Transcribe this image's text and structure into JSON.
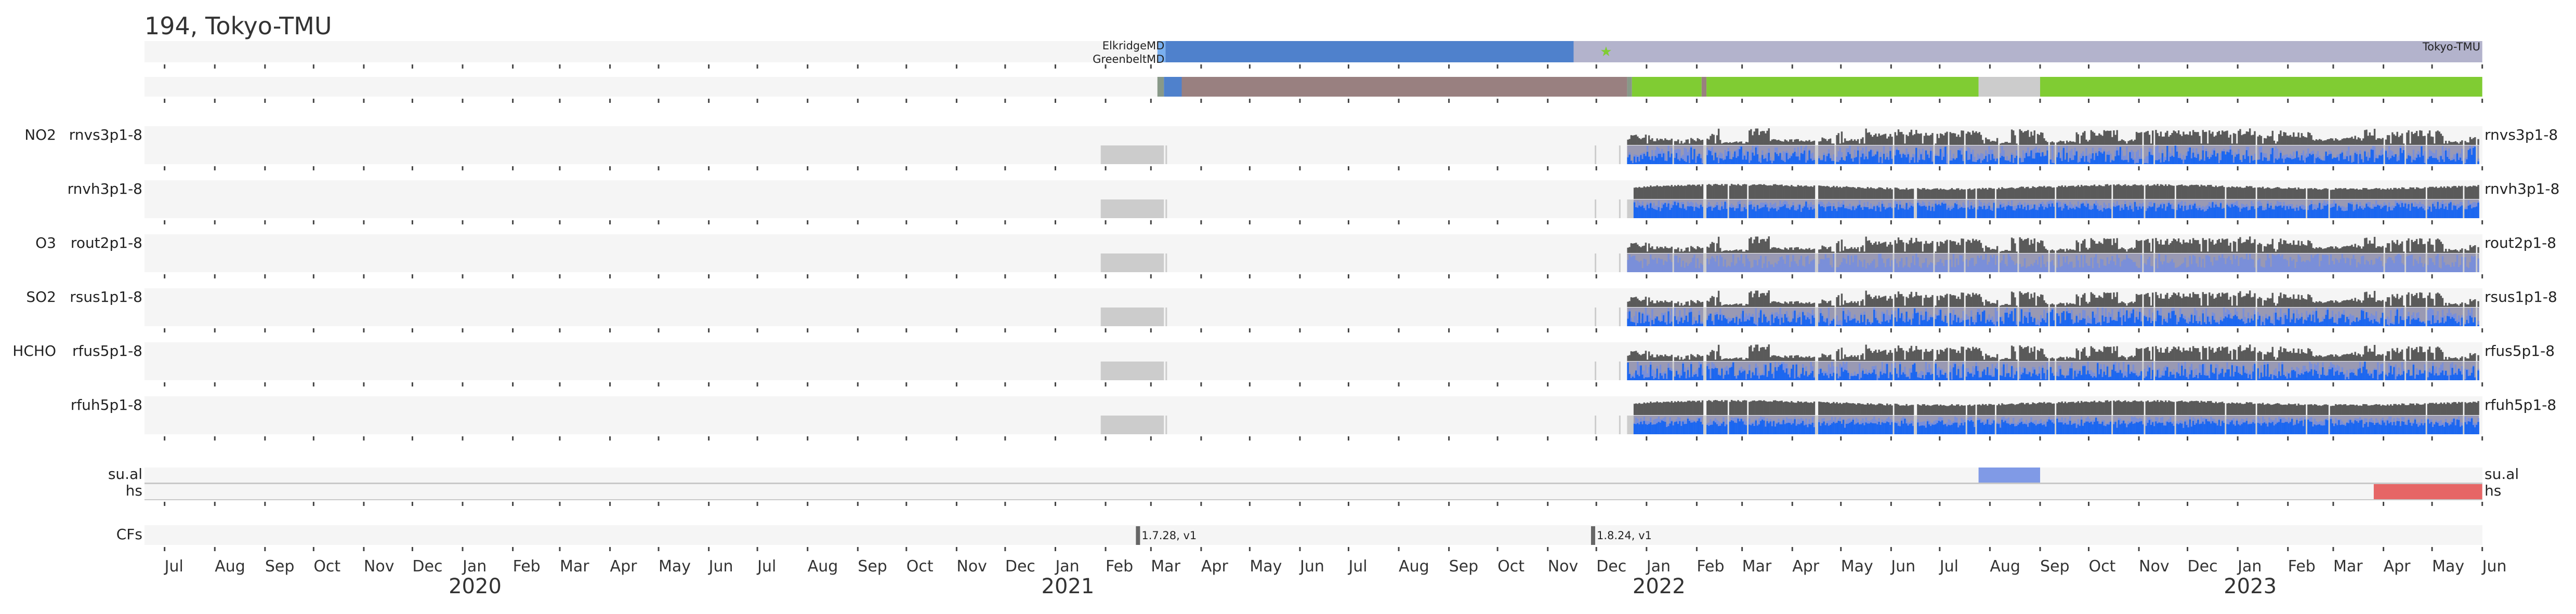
{
  "title": "194, Tokyo-TMU",
  "colors": {
    "panel_bg": "#f5f5f5",
    "site_blue": "#4f81cc",
    "site_lightblue": "#7ab0f0",
    "site_lavender": "#b3b3cc",
    "star_green": "#80cc33",
    "status_greygreen": "#889988",
    "status_brown": "#998080",
    "status_green": "#80cc33",
    "status_grey": "#cccccc",
    "data_dark": "#5a5a5a",
    "data_lavender": "#9999b3",
    "data_lightblue": "#7a8fd9",
    "data_blue": "#1a66f0",
    "sual_blue": "#809ae6",
    "hs_red": "#e66666",
    "cf_mark": "#666666"
  },
  "chart_data": {
    "type": "timeline",
    "title": "194, Tokyo-TMU",
    "x_range": [
      "2019-06-19",
      "2023-06-01"
    ],
    "axis": {
      "months": [
        "Jul",
        "Aug",
        "Sep",
        "Oct",
        "Nov",
        "Dec",
        "Jan",
        "Feb",
        "Mar",
        "Apr",
        "May",
        "Jun",
        "Jul",
        "Aug",
        "Sep",
        "Oct",
        "Nov",
        "Dec",
        "Jan",
        "Feb",
        "Mar",
        "Apr",
        "May",
        "Jun",
        "Jul",
        "Aug",
        "Sep",
        "Oct",
        "Nov",
        "Dec",
        "Jan",
        "Feb",
        "Mar",
        "Apr",
        "May",
        "Jun",
        "Jul",
        "Aug",
        "Sep",
        "Oct",
        "Nov",
        "Dec",
        "Jan",
        "Feb",
        "Mar",
        "Apr",
        "May",
        "Jun"
      ],
      "first_month": "2019-07-01",
      "years": [
        "2020",
        "2021",
        "2022",
        "2023"
      ]
    },
    "site_row": {
      "labels": [
        "ElkridgeMD",
        "GreenbeltMD"
      ],
      "end_label": "Tokyo-TMU",
      "spans": [
        {
          "start": "2021-03-05",
          "end": "2021-03-10",
          "color": "site_lightblue"
        },
        {
          "start": "2021-03-10",
          "end": "2021-11-17",
          "color": "site_blue"
        },
        {
          "start": "2021-11-17",
          "end": "2023-06-01",
          "color": "site_lavender"
        }
      ],
      "marker_date": "2021-12-07"
    },
    "status_row": {
      "spans": [
        {
          "start": "2021-03-05",
          "end": "2021-03-09",
          "color": "status_greygreen"
        },
        {
          "start": "2021-03-09",
          "end": "2021-03-20",
          "color": "site_blue"
        },
        {
          "start": "2021-03-20",
          "end": "2021-12-20",
          "color": "status_brown"
        },
        {
          "start": "2021-12-20",
          "end": "2021-12-23",
          "color": "status_greygreen"
        },
        {
          "start": "2021-12-23",
          "end": "2022-02-04",
          "color": "status_green"
        },
        {
          "start": "2022-02-04",
          "end": "2022-02-07",
          "color": "status_brown"
        },
        {
          "start": "2022-02-07",
          "end": "2022-07-25",
          "color": "status_green"
        },
        {
          "start": "2022-07-25",
          "end": "2022-09-01",
          "color": "status_grey"
        },
        {
          "start": "2022-09-01",
          "end": "2023-06-01",
          "color": "status_green"
        }
      ]
    },
    "panels": [
      {
        "species": "NO2",
        "product": "rnvs3p1-8",
        "kind": "sparse",
        "start": "2021-12-20",
        "end": "2023-05-29",
        "dark_blue": true
      },
      {
        "species": "",
        "product": "rnvh3p1-8",
        "kind": "dense",
        "start": "2021-12-24",
        "end": "2023-05-29",
        "dark_blue": true
      },
      {
        "species": "O3",
        "product": "rout2p1-8",
        "kind": "sparse",
        "start": "2021-12-20",
        "end": "2023-05-29",
        "dark_blue": false
      },
      {
        "species": "SO2",
        "product": "rsus1p1-8",
        "kind": "sparse",
        "start": "2021-12-20",
        "end": "2023-05-29",
        "dark_blue": true
      },
      {
        "species": "HCHO",
        "product": "rfus5p1-8",
        "kind": "sparse",
        "start": "2021-12-20",
        "end": "2023-05-29",
        "dark_blue": true
      },
      {
        "species": "",
        "product": "rfuh5p1-8",
        "kind": "dense",
        "start": "2021-12-24",
        "end": "2023-05-29",
        "dark_blue": true
      }
    ],
    "panel_missing_block": {
      "start": "2021-01-29",
      "end": "2021-03-09"
    },
    "panel_marker_lines": [
      "2021-03-10",
      "2021-11-30",
      "2021-12-15"
    ],
    "panel_gaps": [
      "2022-02-05",
      "2022-02-06",
      "2022-04-15",
      "2022-04-16",
      "2022-06-02",
      "2022-09-10",
      "2023-01-12",
      "2023-04-27",
      "2023-05-20"
    ],
    "flag_rows": [
      {
        "label": "su.al",
        "spans": [
          {
            "start": "2022-07-25",
            "end": "2022-09-01",
            "color": "sual_blue"
          }
        ]
      },
      {
        "label": "hs",
        "spans": [
          {
            "start": "2023-03-26",
            "end": "2023-06-01",
            "color": "hs_red"
          }
        ]
      }
    ],
    "cf_row": {
      "label": "CFs",
      "markers": [
        {
          "date": "2021-02-21",
          "text": "1.7.28, v1"
        },
        {
          "date": "2021-11-29",
          "text": "1.8.24, v1"
        }
      ]
    }
  }
}
